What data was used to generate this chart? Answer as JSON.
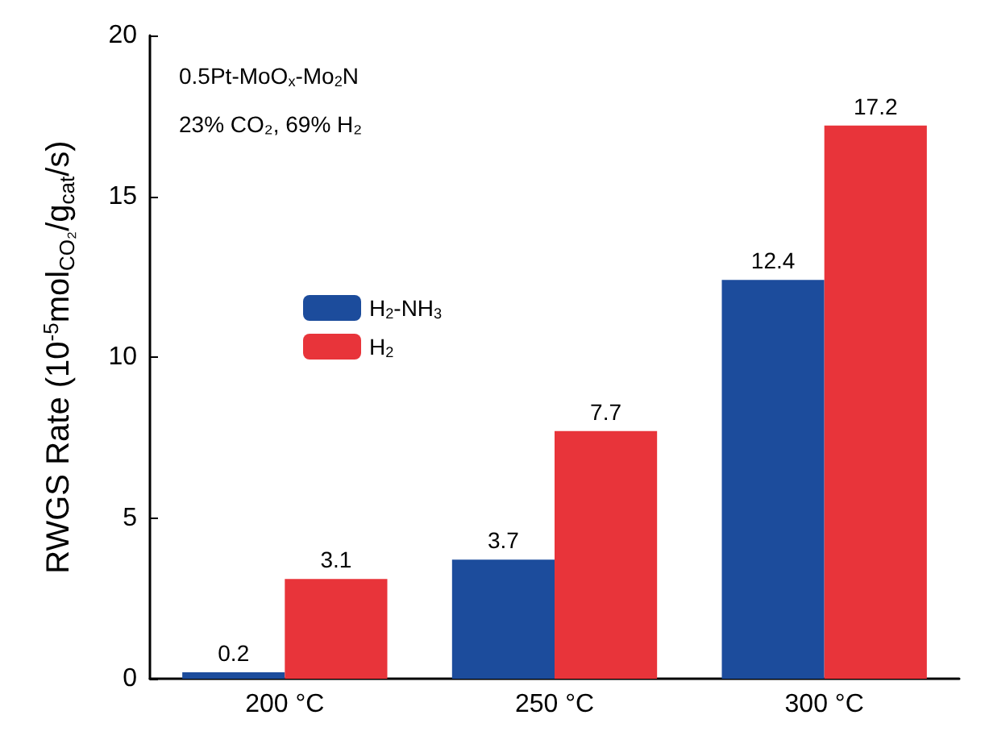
{
  "chart_data": {
    "type": "bar",
    "ylabel": "RWGS Rate (10$^{-5}$mol$_{CO₂}$/g$_{cat}$/s)",
    "categories": [
      "200 °C",
      "250 °C",
      "300 °C"
    ],
    "series": [
      {
        "name": "H$_{2}$-NH$_{3}$",
        "color": "#1c4c9c",
        "values": [
          0.2,
          3.7,
          12.4
        ]
      },
      {
        "name": "H$_{2}$",
        "color": "#e8343a",
        "values": [
          3.1,
          7.7,
          17.2
        ]
      }
    ],
    "ylim": [
      0,
      20
    ],
    "yticks": [
      0,
      5,
      10,
      15,
      20
    ],
    "data_labels": true,
    "grid": false,
    "legend": "left",
    "annotations": [
      "0.5Pt-MoO$_{x}$-Mo$_{2}$N",
      "23% CO₂, 69% H₂"
    ]
  }
}
